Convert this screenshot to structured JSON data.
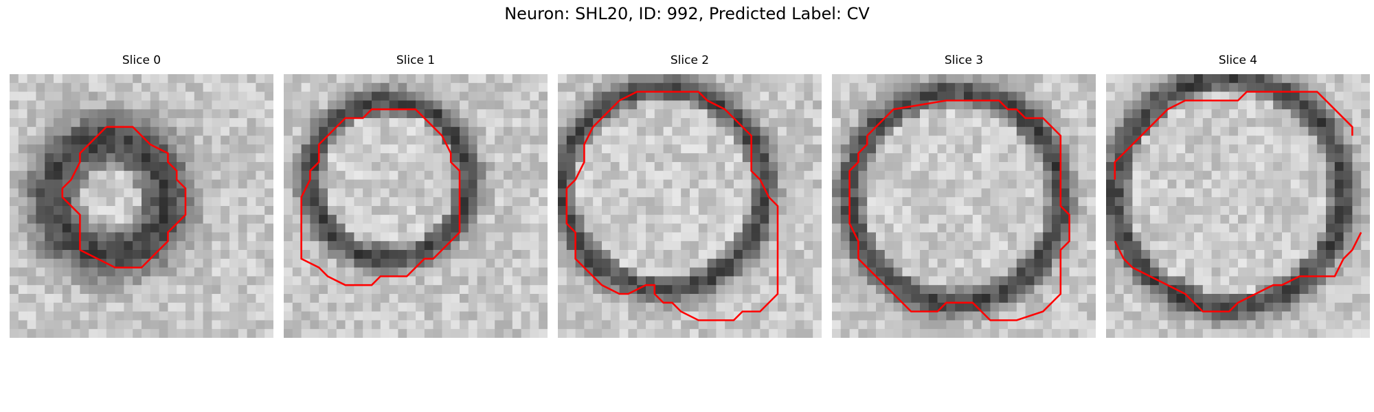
{
  "figure": {
    "title": "Neuron: SHL20, ID: 992, Predicted Label: CV",
    "contour_color": "#ff0000",
    "colormap": "gray",
    "panels": [
      {
        "title": "Slice 0"
      },
      {
        "title": "Slice 1"
      },
      {
        "title": "Slice 2"
      },
      {
        "title": "Slice 3"
      },
      {
        "title": "Slice 4"
      }
    ]
  }
}
